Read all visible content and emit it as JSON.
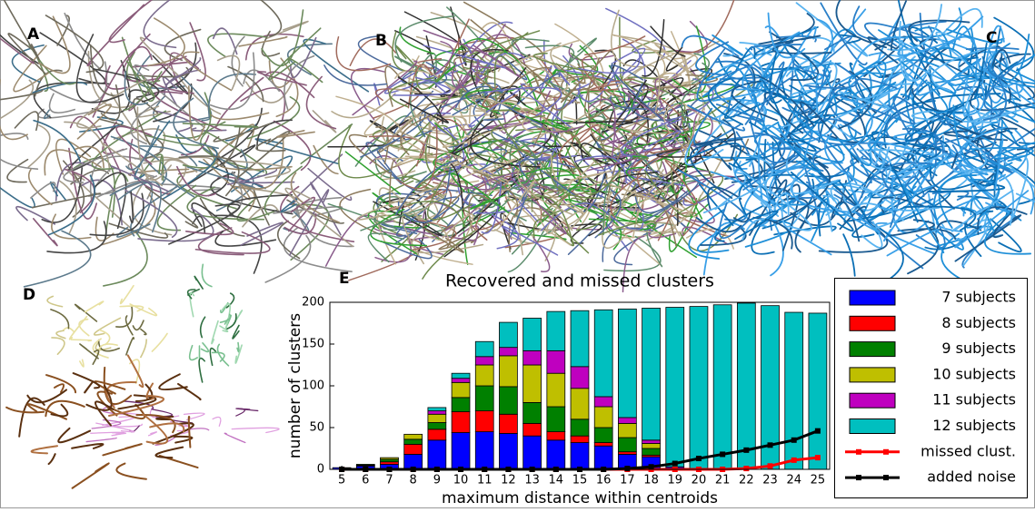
{
  "panels": [
    "A",
    "B",
    "C",
    "D",
    "E"
  ],
  "chart_data": {
    "type": "stacked_bar",
    "title": "Recovered and missed clusters",
    "xlabel": "maximum distance within centroids",
    "ylabel": "number of clusters",
    "categories": [
      "5",
      "6",
      "7",
      "8",
      "9",
      "10",
      "11",
      "12",
      "13",
      "14",
      "15",
      "16",
      "17",
      "18",
      "19",
      "20",
      "21",
      "22",
      "23",
      "24",
      "25"
    ],
    "ylim": [
      0,
      200
    ],
    "yticks": [
      0,
      50,
      100,
      150,
      200
    ],
    "series": [
      {
        "name": "7 subjects",
        "color": "#0000ff",
        "values": [
          2,
          4,
          6,
          18,
          35,
          44,
          45,
          43,
          40,
          35,
          32,
          28,
          18,
          15,
          3,
          0,
          0,
          0,
          0,
          0,
          0
        ]
      },
      {
        "name": "8 subjects",
        "color": "#ff0000",
        "values": [
          0,
          1,
          3,
          12,
          13,
          25,
          25,
          23,
          15,
          10,
          8,
          4,
          3,
          2,
          0,
          0,
          0,
          0,
          0,
          0,
          0
        ]
      },
      {
        "name": "9 subjects",
        "color": "#008000",
        "values": [
          0,
          1,
          3,
          6,
          8,
          17,
          30,
          33,
          25,
          30,
          20,
          18,
          17,
          8,
          0,
          0,
          0,
          0,
          0,
          0,
          0
        ]
      },
      {
        "name": "10 subjects",
        "color": "#bfbf00",
        "values": [
          0,
          0,
          2,
          6,
          10,
          18,
          25,
          37,
          45,
          40,
          37,
          25,
          17,
          6,
          0,
          0,
          0,
          0,
          0,
          0,
          0
        ]
      },
      {
        "name": "11 subjects",
        "color": "#bf00bf",
        "values": [
          0,
          0,
          0,
          0,
          4,
          5,
          10,
          10,
          17,
          27,
          26,
          12,
          7,
          4,
          0,
          0,
          0,
          0,
          0,
          0,
          0
        ]
      },
      {
        "name": "12 subjects",
        "color": "#00bfbf",
        "values": [
          0,
          0,
          0,
          0,
          4,
          6,
          18,
          30,
          39,
          47,
          67,
          104,
          130,
          158,
          191,
          195,
          197,
          199,
          196,
          188,
          187
        ]
      }
    ],
    "lines": [
      {
        "name": "missed clust.",
        "color": "#ff0000",
        "values": [
          0,
          0,
          0,
          0,
          0,
          0,
          0,
          0,
          0,
          0,
          0,
          0,
          0,
          0,
          0,
          0,
          0,
          1,
          4,
          11,
          14
        ]
      },
      {
        "name": "added noise",
        "color": "#000000",
        "values": [
          0,
          0,
          0,
          0,
          0,
          0,
          0,
          0,
          0,
          0,
          0,
          0,
          1,
          3,
          7,
          13,
          18,
          23,
          29,
          35,
          46
        ]
      }
    ]
  }
}
